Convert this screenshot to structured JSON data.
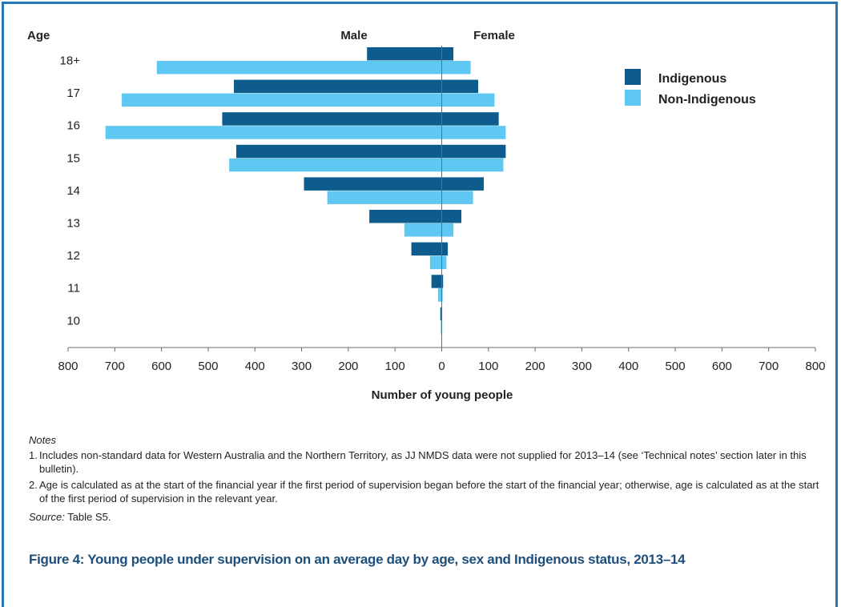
{
  "chart_data": {
    "type": "bar",
    "orientation": "horizontal-population-pyramid",
    "categories": [
      "18+",
      "17",
      "16",
      "15",
      "14",
      "13",
      "12",
      "11",
      "10"
    ],
    "category_axis_label": "Age",
    "side_labels": {
      "left": "Male",
      "right": "Female"
    },
    "series": [
      {
        "name": "Indigenous",
        "color": "#0e5c8e",
        "male": [
          160,
          445,
          470,
          440,
          295,
          155,
          65,
          22,
          3
        ],
        "female": [
          25,
          78,
          122,
          137,
          90,
          42,
          13,
          3,
          1
        ]
      },
      {
        "name": "Non-Indigenous",
        "color": "#5ec8f2",
        "male": [
          610,
          685,
          720,
          455,
          245,
          80,
          25,
          8,
          2
        ],
        "female": [
          62,
          113,
          137,
          132,
          67,
          25,
          10,
          2,
          1
        ]
      }
    ],
    "xlabel": "Number of young people",
    "xlim": [
      -800,
      800
    ],
    "x_ticks": [
      "800",
      "700",
      "600",
      "500",
      "400",
      "300",
      "200",
      "100",
      "0",
      "100",
      "200",
      "300",
      "400",
      "500",
      "600",
      "700",
      "800"
    ],
    "grid": false,
    "legend": "top-right"
  },
  "notes": {
    "title": "Notes",
    "items": [
      {
        "num": "1.",
        "text": "Includes non-standard data for Western Australia and the Northern Territory, as JJ NMDS data were not supplied for 2013–14 (see ‘Technical notes’ section later in this bulletin)."
      },
      {
        "num": "2.",
        "text": "Age is calculated as at the start of the financial year if the first period of supervision began before the start of the financial year; otherwise, age is calculated as at the start of the first period of supervision in the relevant year."
      }
    ]
  },
  "source": {
    "label": "Source:",
    "text": "Table S5."
  },
  "caption": "Figure 4: Young people under supervision on an average day by age, sex and Indigenous status, 2013–14"
}
